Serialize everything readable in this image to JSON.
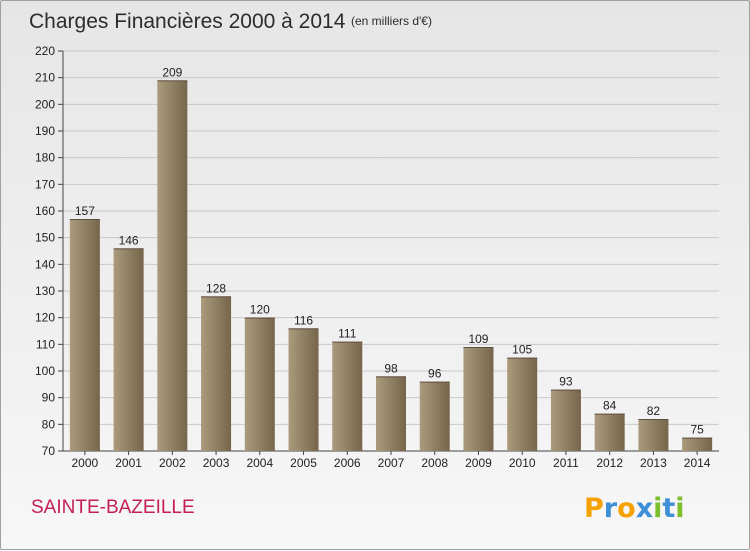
{
  "chart_data": {
    "type": "bar",
    "title": "Charges Financières 2000 à 2014",
    "subtitle": "(en milliers d'€)",
    "categories": [
      "2000",
      "2001",
      "2002",
      "2003",
      "2004",
      "2005",
      "2006",
      "2007",
      "2008",
      "2009",
      "2010",
      "2011",
      "2012",
      "2013",
      "2014"
    ],
    "values": [
      157,
      146,
      209,
      128,
      120,
      116,
      111,
      98,
      96,
      109,
      105,
      93,
      84,
      82,
      75
    ],
    "ylim": [
      70,
      220
    ],
    "yticks": [
      70,
      80,
      90,
      100,
      110,
      120,
      130,
      140,
      150,
      160,
      170,
      180,
      190,
      200,
      210,
      220
    ],
    "grid": true,
    "colors": {
      "bar_light": "#ab9a7c",
      "bar_dark": "#76654a",
      "grid": "#c8c8c8"
    }
  },
  "place_name": "SAINTE-BAZEILLE",
  "logo": {
    "letters": [
      "P",
      "r",
      "o",
      "x",
      "i",
      "t",
      "i"
    ],
    "colors": [
      "#f5a200",
      "#3d8fd6",
      "#f5a200",
      "#3d8fd6",
      "#7dbf2d",
      "#3d8fd6",
      "#7dbf2d"
    ]
  }
}
